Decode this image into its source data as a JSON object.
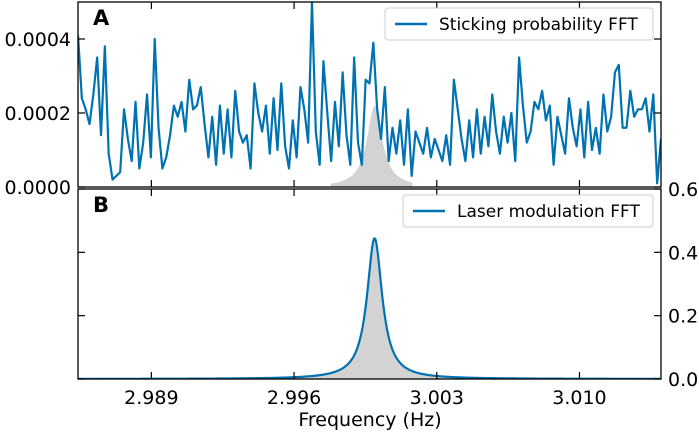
{
  "colors": {
    "line": "#0072b2",
    "fill": "#d3d3d3",
    "axis": "#000000",
    "legend_border": "#cccccc"
  },
  "xlabel": "Frequency (Hz)",
  "chart_data": [
    {
      "panel_label": "A",
      "type": "line",
      "series_name": "Sticking probability FFT",
      "legend_position": "top-right",
      "xlim": [
        2.9854,
        3.014
      ],
      "ylim": [
        0,
        0.0005
      ],
      "x_ticks": [
        2.989,
        2.996,
        3.003,
        3.01
      ],
      "x_tick_labels": [
        "",
        "",
        "",
        ""
      ],
      "y_ticks": [
        0,
        0.0002,
        0.0004
      ],
      "y_tick_labels": [
        "0.0000",
        "0.0002",
        "0.0004"
      ],
      "y_axis_side": "left",
      "values": [
        0.00041,
        0.00024,
        0.00021,
        0.00017,
        0.00025,
        0.00035,
        0.00014,
        0.00038,
        9e-05,
        2e-05,
        3e-05,
        4e-05,
        0.00021,
        0.00013,
        7e-05,
        0.00023,
        5e-05,
        0.00012,
        0.00025,
        8e-05,
        0.0004,
        0.00016,
        5e-05,
        8e-05,
        0.00014,
        0.00022,
        0.00019,
        0.00023,
        0.00015,
        0.00029,
        0.00021,
        0.00022,
        0.00027,
        0.00017,
        8e-05,
        0.00019,
        6e-05,
        0.00022,
        9e-05,
        0.00021,
        8e-05,
        0.00026,
        0.00015,
        0.00012,
        0.00014,
        5e-05,
        0.00028,
        0.0002,
        0.00015,
        0.00022,
        9e-05,
        0.00024,
        0.0001,
        0.00028,
        0.00011,
        5e-05,
        0.00018,
        8e-05,
        0.00027,
        0.00021,
        0.00012,
        0.0005,
        0.00015,
        6e-05,
        0.00034,
        0.0002,
        7e-05,
        0.00023,
        0.00011,
        0.00031,
        0.00014,
        6e-05,
        0.00035,
        0.00012,
        6e-05,
        0.00029,
        0.00028,
        0.00039,
        0.00021,
        0.00013,
        0.00027,
        7e-05,
        0.00016,
        9e-05,
        0.00018,
        6e-05,
        0.00021,
        3e-05,
        0.00015,
        0.00012,
        9e-05,
        0.00016,
        8e-05,
        0.00013,
        0.0001,
        7e-05,
        0.00014,
        6e-05,
        0.00029,
        0.00021,
        0.00013,
        7e-05,
        0.00018,
        8e-05,
        0.00021,
        9e-05,
        0.00019,
        0.00011,
        0.00025,
        0.00015,
        9e-05,
        0.00019,
        0.00012,
        0.0002,
        7e-05,
        0.00035,
        0.00022,
        0.00012,
        0.00015,
        0.00023,
        0.00021,
        0.00026,
        0.00018,
        0.00022,
        6e-05,
        0.00019,
        0.00014,
        9e-05,
        0.00024,
        0.00016,
        0.00011,
        0.00021,
        8e-05,
        0.00023,
        0.0001,
        0.00016,
        9e-05,
        0.00025,
        0.00015,
        0.00019,
        0.00031,
        0.00033,
        0.00016,
        0.00016,
        0.00026,
        0.00019,
        0.00021,
        0.00021,
        0.00024,
        0.00015,
        0.00025,
        1e-05,
        0.00013
      ],
      "shaded_peak": {
        "center": 2.99995,
        "height": 0.00022,
        "half_width": 0.00045,
        "x_range": [
          2.9978,
          3.0018
        ]
      }
    },
    {
      "panel_label": "B",
      "type": "line",
      "series_name": "Laser modulation FFT",
      "legend_position": "top-right",
      "xlim": [
        2.9854,
        3.014
      ],
      "ylim": [
        0,
        0.6
      ],
      "x_ticks": [
        2.989,
        2.996,
        3.003,
        3.01
      ],
      "x_tick_labels": [
        "2.989",
        "2.996",
        "3.003",
        "3.010"
      ],
      "y_ticks": [
        0.0,
        0.2,
        0.4,
        0.6
      ],
      "y_tick_labels": [
        "0.0",
        "0.2",
        "0.4",
        "0.6"
      ],
      "y_axis_side": "right",
      "peak": {
        "center": 2.99995,
        "height": 0.445,
        "half_width": 0.00045
      },
      "shaded": true
    }
  ]
}
